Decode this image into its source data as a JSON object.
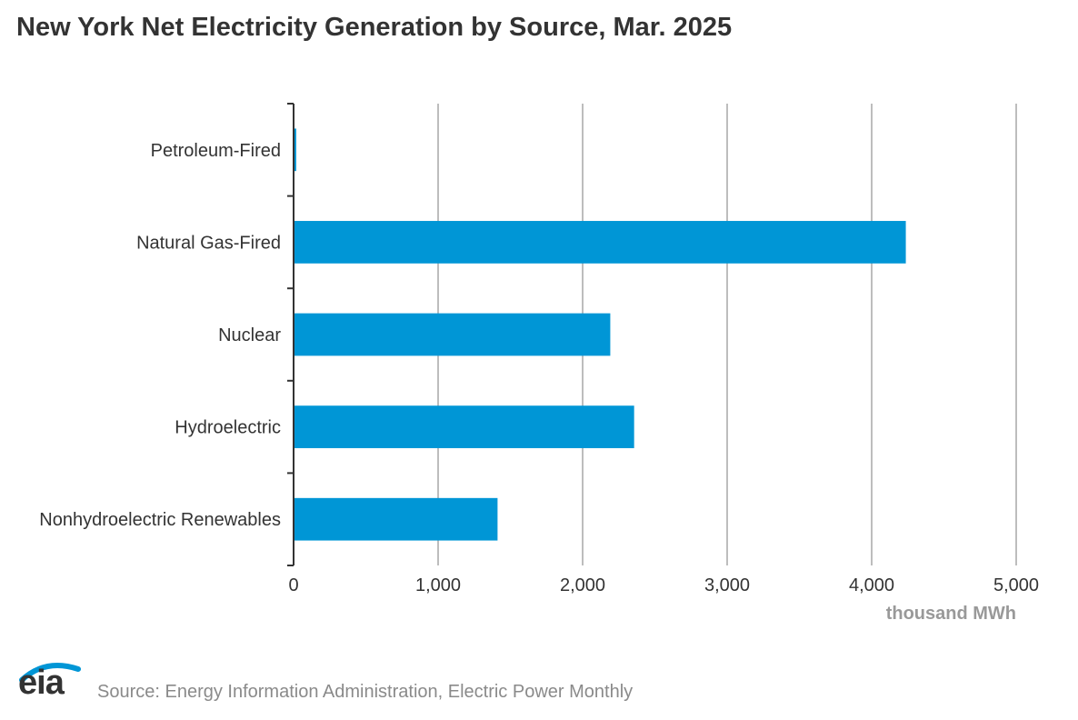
{
  "chart_data": {
    "type": "bar",
    "orientation": "horizontal",
    "title": "New York Net Electricity Generation by Source, Mar. 2025",
    "categories": [
      "Petroleum-Fired",
      "Natural Gas-Fired",
      "Nuclear",
      "Hydroelectric",
      "Nonhydroelectric Renewables"
    ],
    "values": [
      12,
      4230,
      2185,
      2350,
      1405
    ],
    "xlim": [
      0,
      5000
    ],
    "xticks": [
      0,
      1000,
      2000,
      3000,
      4000,
      5000
    ],
    "xtick_labels": [
      "0",
      "1,000",
      "2,000",
      "3,000",
      "4,000",
      "5,000"
    ],
    "xlabel": "thousand MWh",
    "ylabel": "",
    "grid": "vertical",
    "bar_color": "#0096d6"
  },
  "footer": {
    "logo_text": "eia",
    "source": "Source: Energy Information Administration, Electric Power Monthly"
  },
  "colors": {
    "grid": "#bdbdbd",
    "axis": "#333333",
    "logo_swoosh": "#0096d6"
  }
}
